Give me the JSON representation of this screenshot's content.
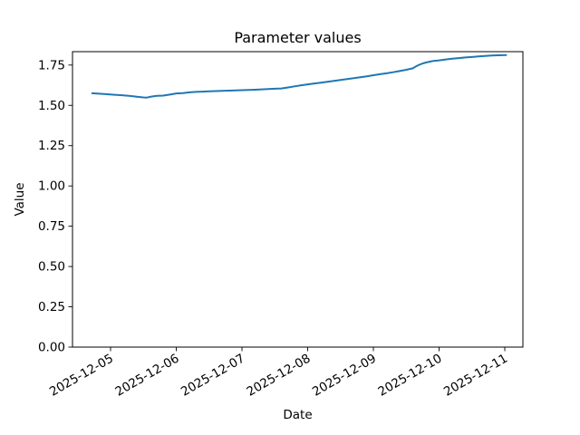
{
  "figure": {
    "title": "Parameter values",
    "xlabel": "Date",
    "ylabel": "Value"
  },
  "chart_data": {
    "type": "line",
    "title": "Parameter values",
    "xlabel": "Date",
    "ylabel": "Value",
    "grid": false,
    "legend": "none",
    "line_color": "#1f77b4",
    "x_unit": "days_since_2025-12-05T00:00",
    "xlim": [
      -0.58,
      6.28
    ],
    "ylim": [
      0,
      1.833
    ],
    "x_ticks": [
      {
        "day": 0,
        "label": "2025-12-05"
      },
      {
        "day": 1,
        "label": "2025-12-06"
      },
      {
        "day": 2,
        "label": "2025-12-07"
      },
      {
        "day": 3,
        "label": "2025-12-08"
      },
      {
        "day": 4,
        "label": "2025-12-09"
      },
      {
        "day": 5,
        "label": "2025-12-10"
      },
      {
        "day": 6,
        "label": "2025-12-11"
      }
    ],
    "y_ticks": [
      {
        "value": 0.0,
        "label": "0.00"
      },
      {
        "value": 0.25,
        "label": "0.25"
      },
      {
        "value": 0.5,
        "label": "0.50"
      },
      {
        "value": 0.75,
        "label": "0.75"
      },
      {
        "value": 1.0,
        "label": "1.00"
      },
      {
        "value": 1.25,
        "label": "1.25"
      },
      {
        "value": 1.5,
        "label": "1.50"
      },
      {
        "value": 1.75,
        "label": "1.75"
      }
    ],
    "series": [
      {
        "name": "parameter",
        "color": "#1f77b4",
        "points": [
          [
            -0.28,
            1.575
          ],
          [
            -0.2,
            1.5735
          ],
          [
            -0.1,
            1.5705
          ],
          [
            0.0,
            1.568
          ],
          [
            0.1,
            1.5645
          ],
          [
            0.2,
            1.5615
          ],
          [
            0.3,
            1.558
          ],
          [
            0.4,
            1.5535
          ],
          [
            0.5,
            1.5495
          ],
          [
            0.55,
            1.548
          ],
          [
            0.62,
            1.5545
          ],
          [
            0.7,
            1.5595
          ],
          [
            0.8,
            1.5605
          ],
          [
            0.9,
            1.5665
          ],
          [
            1.0,
            1.574
          ],
          [
            1.1,
            1.5765
          ],
          [
            1.2,
            1.5805
          ],
          [
            1.3,
            1.5835
          ],
          [
            1.4,
            1.5855
          ],
          [
            1.5,
            1.5875
          ],
          [
            1.6,
            1.5885
          ],
          [
            1.7,
            1.5905
          ],
          [
            1.8,
            1.5915
          ],
          [
            1.9,
            1.5925
          ],
          [
            2.0,
            1.5945
          ],
          [
            2.1,
            1.5955
          ],
          [
            2.2,
            1.597
          ],
          [
            2.3,
            1.5995
          ],
          [
            2.4,
            1.601
          ],
          [
            2.5,
            1.6035
          ],
          [
            2.6,
            1.605
          ],
          [
            2.7,
            1.611
          ],
          [
            2.8,
            1.618
          ],
          [
            2.9,
            1.6245
          ],
          [
            3.0,
            1.6305
          ],
          [
            3.1,
            1.636
          ],
          [
            3.2,
            1.641
          ],
          [
            3.3,
            1.6465
          ],
          [
            3.4,
            1.652
          ],
          [
            3.5,
            1.6575
          ],
          [
            3.6,
            1.663
          ],
          [
            3.7,
            1.6685
          ],
          [
            3.8,
            1.674
          ],
          [
            3.9,
            1.6805
          ],
          [
            4.0,
            1.687
          ],
          [
            4.1,
            1.693
          ],
          [
            4.2,
            1.699
          ],
          [
            4.3,
            1.7055
          ],
          [
            4.4,
            1.713
          ],
          [
            4.5,
            1.721
          ],
          [
            4.6,
            1.7295
          ],
          [
            4.65,
            1.742
          ],
          [
            4.7,
            1.752
          ],
          [
            4.75,
            1.76
          ],
          [
            4.8,
            1.766
          ],
          [
            4.9,
            1.7745
          ],
          [
            5.0,
            1.7795
          ],
          [
            5.1,
            1.785
          ],
          [
            5.2,
            1.79
          ],
          [
            5.3,
            1.7935
          ],
          [
            5.4,
            1.797
          ],
          [
            5.5,
            1.8
          ],
          [
            5.6,
            1.8035
          ],
          [
            5.7,
            1.8065
          ],
          [
            5.8,
            1.8095
          ],
          [
            5.9,
            1.811
          ],
          [
            6.02,
            1.812
          ]
        ]
      }
    ]
  }
}
